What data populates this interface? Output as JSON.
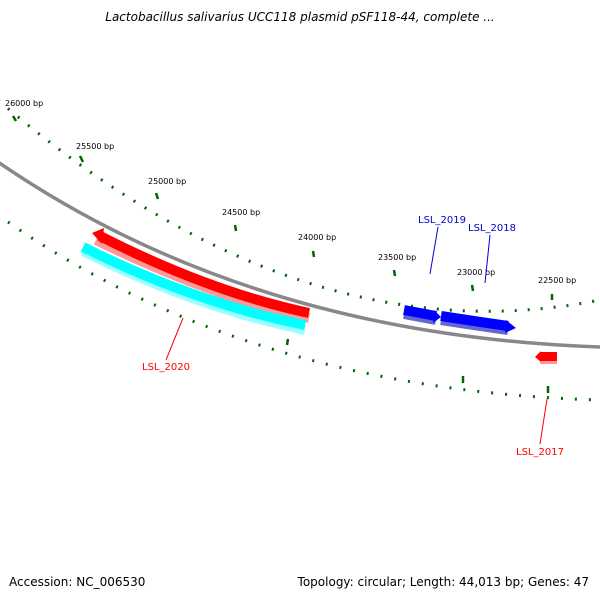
{
  "title": "Lactobacillus salivarius UCC118 plasmid pSF118-44, complete ...",
  "accession": "Accession: NC_006530",
  "summary": "Topology: circular; Length: 44,013 bp; Genes: 47",
  "scale_labels": [
    "26000 bp",
    "25500 bp",
    "25000 bp",
    "24500 bp",
    "24000 bp",
    "23500 bp",
    "23000 bp",
    "22500 bp"
  ],
  "genes": [
    {
      "name": "LSL_2020",
      "color": "#ff0000"
    },
    {
      "name": "LSL_2019",
      "color": "#0000cc"
    },
    {
      "name": "LSL_2018",
      "color": "#0000cc"
    },
    {
      "name": "LSL_2017",
      "color": "#ff0000"
    }
  ],
  "colors": {
    "backbone": "#888888",
    "ticks": "#006600",
    "forward_gene": "#0000ff",
    "reverse_gene": "#ff0000",
    "highlight_gene": "#00ffff"
  }
}
